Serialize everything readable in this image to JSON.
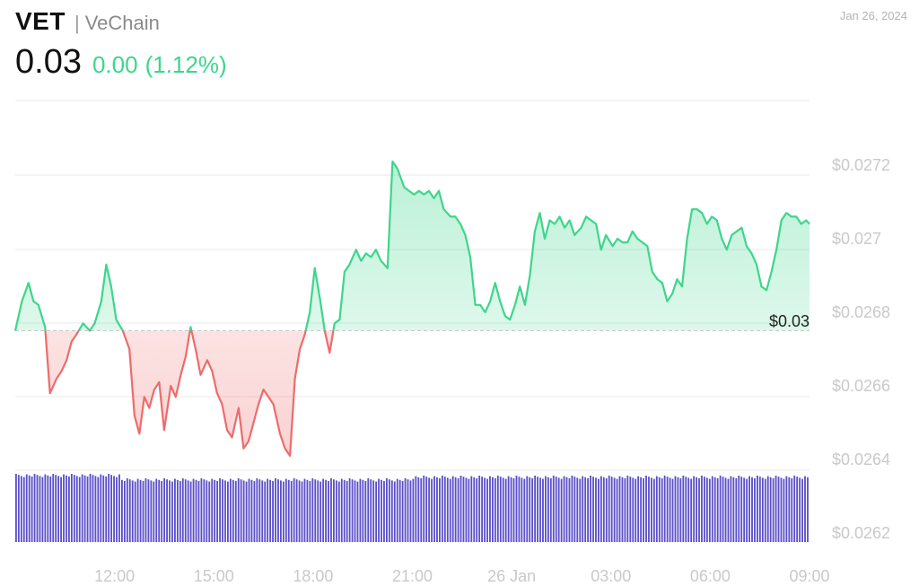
{
  "header": {
    "symbol": "VET",
    "separator": "|",
    "name": "VeChain",
    "price": "0.03",
    "change": "0.00",
    "change_pct": "(1.12%)",
    "date": "Jan 26, 2024"
  },
  "colors": {
    "up": "#3dd68c",
    "down": "#ee6b6b",
    "volume": "#5b4fc9",
    "grid": "#e8e8e8",
    "baseline": "#c8c8c8",
    "tick_text": "#c9c9c9"
  },
  "chart_data": {
    "type": "line",
    "x_tick_labels": [
      "12:00",
      "15:00",
      "18:00",
      "21:00",
      "26 Jan",
      "03:00",
      "06:00",
      "09:00"
    ],
    "x_tick_hours": [
      12,
      15,
      18,
      21,
      24,
      27,
      30,
      33
    ],
    "y_tick_labels": [
      "$0.0272",
      "$0.027",
      "$0.0268",
      "$0.0266",
      "$0.0264",
      "$0.0262"
    ],
    "y_tick_values": [
      0.0272,
      0.027,
      0.0268,
      0.0266,
      0.0264,
      0.0262
    ],
    "ylim": [
      0.0262,
      0.0274
    ],
    "xlim": [
      9.0,
      33.0
    ],
    "baseline_value": 0.02675,
    "last_price_label": "$0.03",
    "grid": true,
    "series": [
      {
        "x": [
          9.0,
          9.2,
          9.4,
          9.55,
          9.7,
          9.9,
          10.05,
          10.25,
          10.4,
          10.55,
          10.7,
          10.85,
          11.05,
          11.25,
          11.4,
          11.6,
          11.75,
          11.9,
          12.05,
          12.25,
          12.45,
          12.6,
          12.75,
          12.9,
          13.05,
          13.2,
          13.35,
          13.5,
          13.7,
          13.85,
          14.0,
          14.15,
          14.3,
          14.45,
          14.6,
          14.8,
          14.95,
          15.1,
          15.25,
          15.4,
          15.55,
          15.75,
          15.9,
          16.05,
          16.2,
          16.35,
          16.5,
          16.65,
          16.8,
          17.0,
          17.15,
          17.3,
          17.45,
          17.6,
          17.75,
          17.9,
          18.05,
          18.2,
          18.35,
          18.5,
          18.65,
          18.8,
          18.95,
          19.1,
          19.3,
          19.45,
          19.6,
          19.75,
          19.9,
          20.05,
          20.25,
          20.4,
          20.55,
          20.75,
          20.9,
          21.05,
          21.2,
          21.35,
          21.5,
          21.65,
          21.8,
          21.95,
          22.15,
          22.3,
          22.45,
          22.6,
          22.75,
          22.9,
          23.05,
          23.2,
          23.35,
          23.5,
          23.65,
          23.8,
          23.95,
          24.1,
          24.25,
          24.4,
          24.55,
          24.7,
          24.85,
          25.0,
          25.15,
          25.3,
          25.45,
          25.6,
          25.75,
          25.9,
          26.1,
          26.25,
          26.4,
          26.55,
          26.7,
          26.85,
          27.05,
          27.2,
          27.35,
          27.5,
          27.65,
          27.8,
          27.95,
          28.1,
          28.25,
          28.4,
          28.55,
          28.7,
          28.85,
          29.0,
          29.15,
          29.3,
          29.45,
          29.6,
          29.75,
          29.9,
          30.05,
          30.2,
          30.35,
          30.5,
          30.65,
          30.8,
          30.95,
          31.1,
          31.25,
          31.4,
          31.55,
          31.7,
          31.85,
          32.0,
          32.15,
          32.3,
          32.45,
          32.6,
          32.75,
          32.9,
          33.0
        ],
        "y": [
          0.02675,
          0.02683,
          0.02688,
          0.02683,
          0.02682,
          0.02676,
          0.02658,
          0.02662,
          0.02664,
          0.02667,
          0.02672,
          0.02674,
          0.02677,
          0.02675,
          0.02677,
          0.02683,
          0.02693,
          0.02687,
          0.02678,
          0.02675,
          0.0267,
          0.02652,
          0.02647,
          0.02657,
          0.02654,
          0.02659,
          0.02661,
          0.02648,
          0.0266,
          0.02657,
          0.02663,
          0.02668,
          0.02676,
          0.0267,
          0.02663,
          0.02667,
          0.02664,
          0.02658,
          0.02655,
          0.02648,
          0.02646,
          0.02654,
          0.02643,
          0.02645,
          0.0265,
          0.02655,
          0.02659,
          0.02657,
          0.02655,
          0.02647,
          0.02643,
          0.02641,
          0.02662,
          0.0267,
          0.02674,
          0.0268,
          0.02692,
          0.02684,
          0.02675,
          0.02669,
          0.02677,
          0.02678,
          0.02691,
          0.02693,
          0.02697,
          0.02694,
          0.02696,
          0.02695,
          0.02697,
          0.02694,
          0.02692,
          0.02721,
          0.02719,
          0.02714,
          0.02713,
          0.02712,
          0.02713,
          0.02712,
          0.02713,
          0.02711,
          0.02713,
          0.02708,
          0.02706,
          0.02706,
          0.02704,
          0.02701,
          0.02695,
          0.02682,
          0.02682,
          0.0268,
          0.02683,
          0.02688,
          0.02683,
          0.02679,
          0.02678,
          0.02682,
          0.02687,
          0.02682,
          0.0269,
          0.02702,
          0.02707,
          0.027,
          0.02705,
          0.02704,
          0.02706,
          0.02703,
          0.02705,
          0.02701,
          0.02703,
          0.02706,
          0.02705,
          0.02704,
          0.02697,
          0.02701,
          0.02698,
          0.027,
          0.02699,
          0.02699,
          0.02702,
          0.027,
          0.02699,
          0.02698,
          0.02691,
          0.02689,
          0.02688,
          0.02683,
          0.02685,
          0.02689,
          0.02687,
          0.027,
          0.02708,
          0.02708,
          0.02707,
          0.02704,
          0.02706,
          0.02705,
          0.027,
          0.02697,
          0.02701,
          0.02702,
          0.02703,
          0.02698,
          0.02696,
          0.02693,
          0.02687,
          0.02686,
          0.02691,
          0.02697,
          0.02705,
          0.02707,
          0.02706,
          0.02706,
          0.02704,
          0.02705,
          0.02704
        ]
      }
    ],
    "volume": {
      "description_of_range": "uniform volume bars along the bottom band",
      "level_fraction": 0.92
    }
  }
}
